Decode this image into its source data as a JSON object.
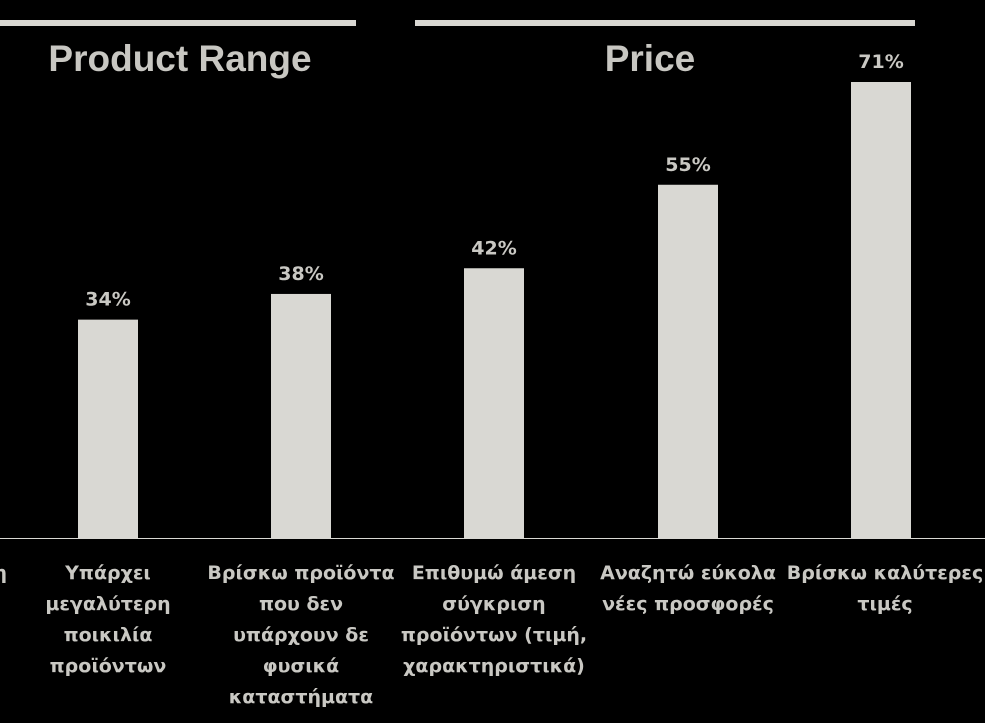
{
  "colors": {
    "background": "#000000",
    "bar": "#d9d8d3",
    "text": "#c9c8c3",
    "title": "#c8c7c2",
    "line": "#d9d8d3"
  },
  "groups": [
    {
      "title": "Product Range"
    },
    {
      "title": "Price"
    }
  ],
  "chart_data": {
    "type": "bar",
    "categories": [
      "η",
      "Υπάρχει μεγαλύτερη ποικιλία προϊόντων",
      "Βρίσκω προϊόντα που δεν υπάρχουν δε φυσικά καταστήματα",
      "Επιθυμώ άμεση σύγκριση προϊόντων (τιμή, χαρακτηριστικά)",
      "Αναζητώ εύκολα νέες προσφορές",
      "Βρίσκω καλύτερες τιμές"
    ],
    "values": [
      null,
      34,
      38,
      42,
      55,
      71
    ],
    "data_labels": [
      "",
      "34%",
      "38%",
      "42%",
      "55%",
      "71%"
    ],
    "ylim": [
      0,
      71
    ],
    "grid": false,
    "legend": "none"
  }
}
